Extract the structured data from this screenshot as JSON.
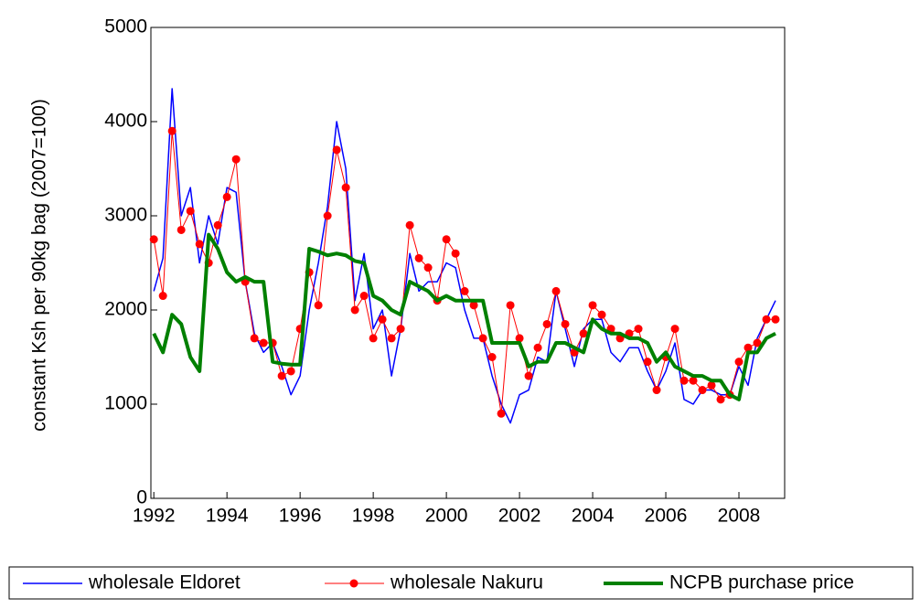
{
  "chart_data": {
    "type": "line",
    "ylabel": "constant Ksh per 90kg bag (2007=100)",
    "x": [
      1992,
      1992.25,
      1992.5,
      1992.75,
      1993,
      1993.25,
      1993.5,
      1993.75,
      1994,
      1994.25,
      1994.5,
      1994.75,
      1995,
      1995.25,
      1995.5,
      1995.75,
      1996,
      1996.25,
      1996.5,
      1996.75,
      1997,
      1997.25,
      1997.5,
      1997.75,
      1998,
      1998.25,
      1998.5,
      1998.75,
      1999,
      1999.25,
      1999.5,
      1999.75,
      2000,
      2000.25,
      2000.5,
      2000.75,
      2001,
      2001.25,
      2001.5,
      2001.75,
      2002,
      2002.25,
      2002.5,
      2002.75,
      2003,
      2003.25,
      2003.5,
      2003.75,
      2004,
      2004.25,
      2004.5,
      2004.75,
      2005,
      2005.25,
      2005.5,
      2005.75,
      2006,
      2006.25,
      2006.5,
      2006.75,
      2007,
      2007.25,
      2007.5,
      2007.75,
      2008,
      2008.25,
      2008.5,
      2008.75,
      2009
    ],
    "series": [
      {
        "name": "wholesale Eldoret",
        "color": "#0000ff",
        "width": 1.5,
        "marker": false,
        "values": [
          2200,
          2550,
          4350,
          3000,
          3300,
          2500,
          3000,
          2700,
          3300,
          3250,
          2300,
          1750,
          1550,
          1650,
          1400,
          1100,
          1300,
          2000,
          2500,
          3100,
          4000,
          3500,
          2100,
          2600,
          1800,
          2000,
          1300,
          1800,
          2600,
          2200,
          2300,
          2300,
          2500,
          2450,
          2000,
          1700,
          1700,
          1300,
          1000,
          800,
          1100,
          1150,
          1500,
          1450,
          2200,
          1800,
          1400,
          1800,
          1900,
          1900,
          1550,
          1450,
          1600,
          1600,
          1350,
          1150,
          1350,
          1650,
          1050,
          1000,
          1150,
          1150,
          1100,
          1100,
          1400,
          1200,
          1700,
          1900,
          2100
        ]
      },
      {
        "name": "wholesale Nakuru",
        "color": "#ff0000",
        "width": 1,
        "marker": true,
        "values": [
          2750,
          2150,
          3900,
          2850,
          3050,
          2700,
          2500,
          2900,
          3200,
          3600,
          2300,
          1700,
          1650,
          1650,
          1300,
          1350,
          1800,
          2400,
          2050,
          3000,
          3700,
          3300,
          2000,
          2150,
          1700,
          1900,
          1700,
          1800,
          2900,
          2550,
          2450,
          2100,
          2750,
          2600,
          2200,
          2050,
          1700,
          1500,
          900,
          2050,
          1700,
          1300,
          1600,
          1850,
          2200,
          1850,
          1550,
          1750,
          2050,
          1950,
          1800,
          1700,
          1750,
          1800,
          1450,
          1150,
          1500,
          1800,
          1250,
          1250,
          1150,
          1200,
          1050,
          1100,
          1450,
          1600,
          1650,
          1900,
          1900
        ]
      },
      {
        "name": "NCPB purchase price",
        "color": "#008000",
        "width": 4,
        "marker": false,
        "values": [
          1750,
          1550,
          1950,
          1850,
          1500,
          1350,
          2800,
          2650,
          2400,
          2300,
          2350,
          2300,
          2300,
          1450,
          1430,
          1420,
          1420,
          2650,
          2620,
          2580,
          2600,
          2580,
          2520,
          2500,
          2150,
          2100,
          2000,
          1950,
          2300,
          2250,
          2200,
          2100,
          2150,
          2100,
          2100,
          2100,
          2100,
          1650,
          1650,
          1650,
          1650,
          1400,
          1450,
          1450,
          1650,
          1650,
          1600,
          1550,
          1900,
          1800,
          1750,
          1750,
          1700,
          1700,
          1650,
          1450,
          1550,
          1400,
          1350,
          1300,
          1300,
          1250,
          1250,
          1100,
          1050,
          1550,
          1550,
          1700,
          1750
        ]
      }
    ],
    "xlim": [
      1991.92,
      2009.25
    ],
    "xticks": [
      1992,
      1994,
      1996,
      1998,
      2000,
      2002,
      2004,
      2006,
      2008
    ],
    "ylim": [
      0,
      5000
    ],
    "yticks": [
      0,
      1000,
      2000,
      3000,
      4000,
      5000
    ],
    "legend": "bottom"
  }
}
